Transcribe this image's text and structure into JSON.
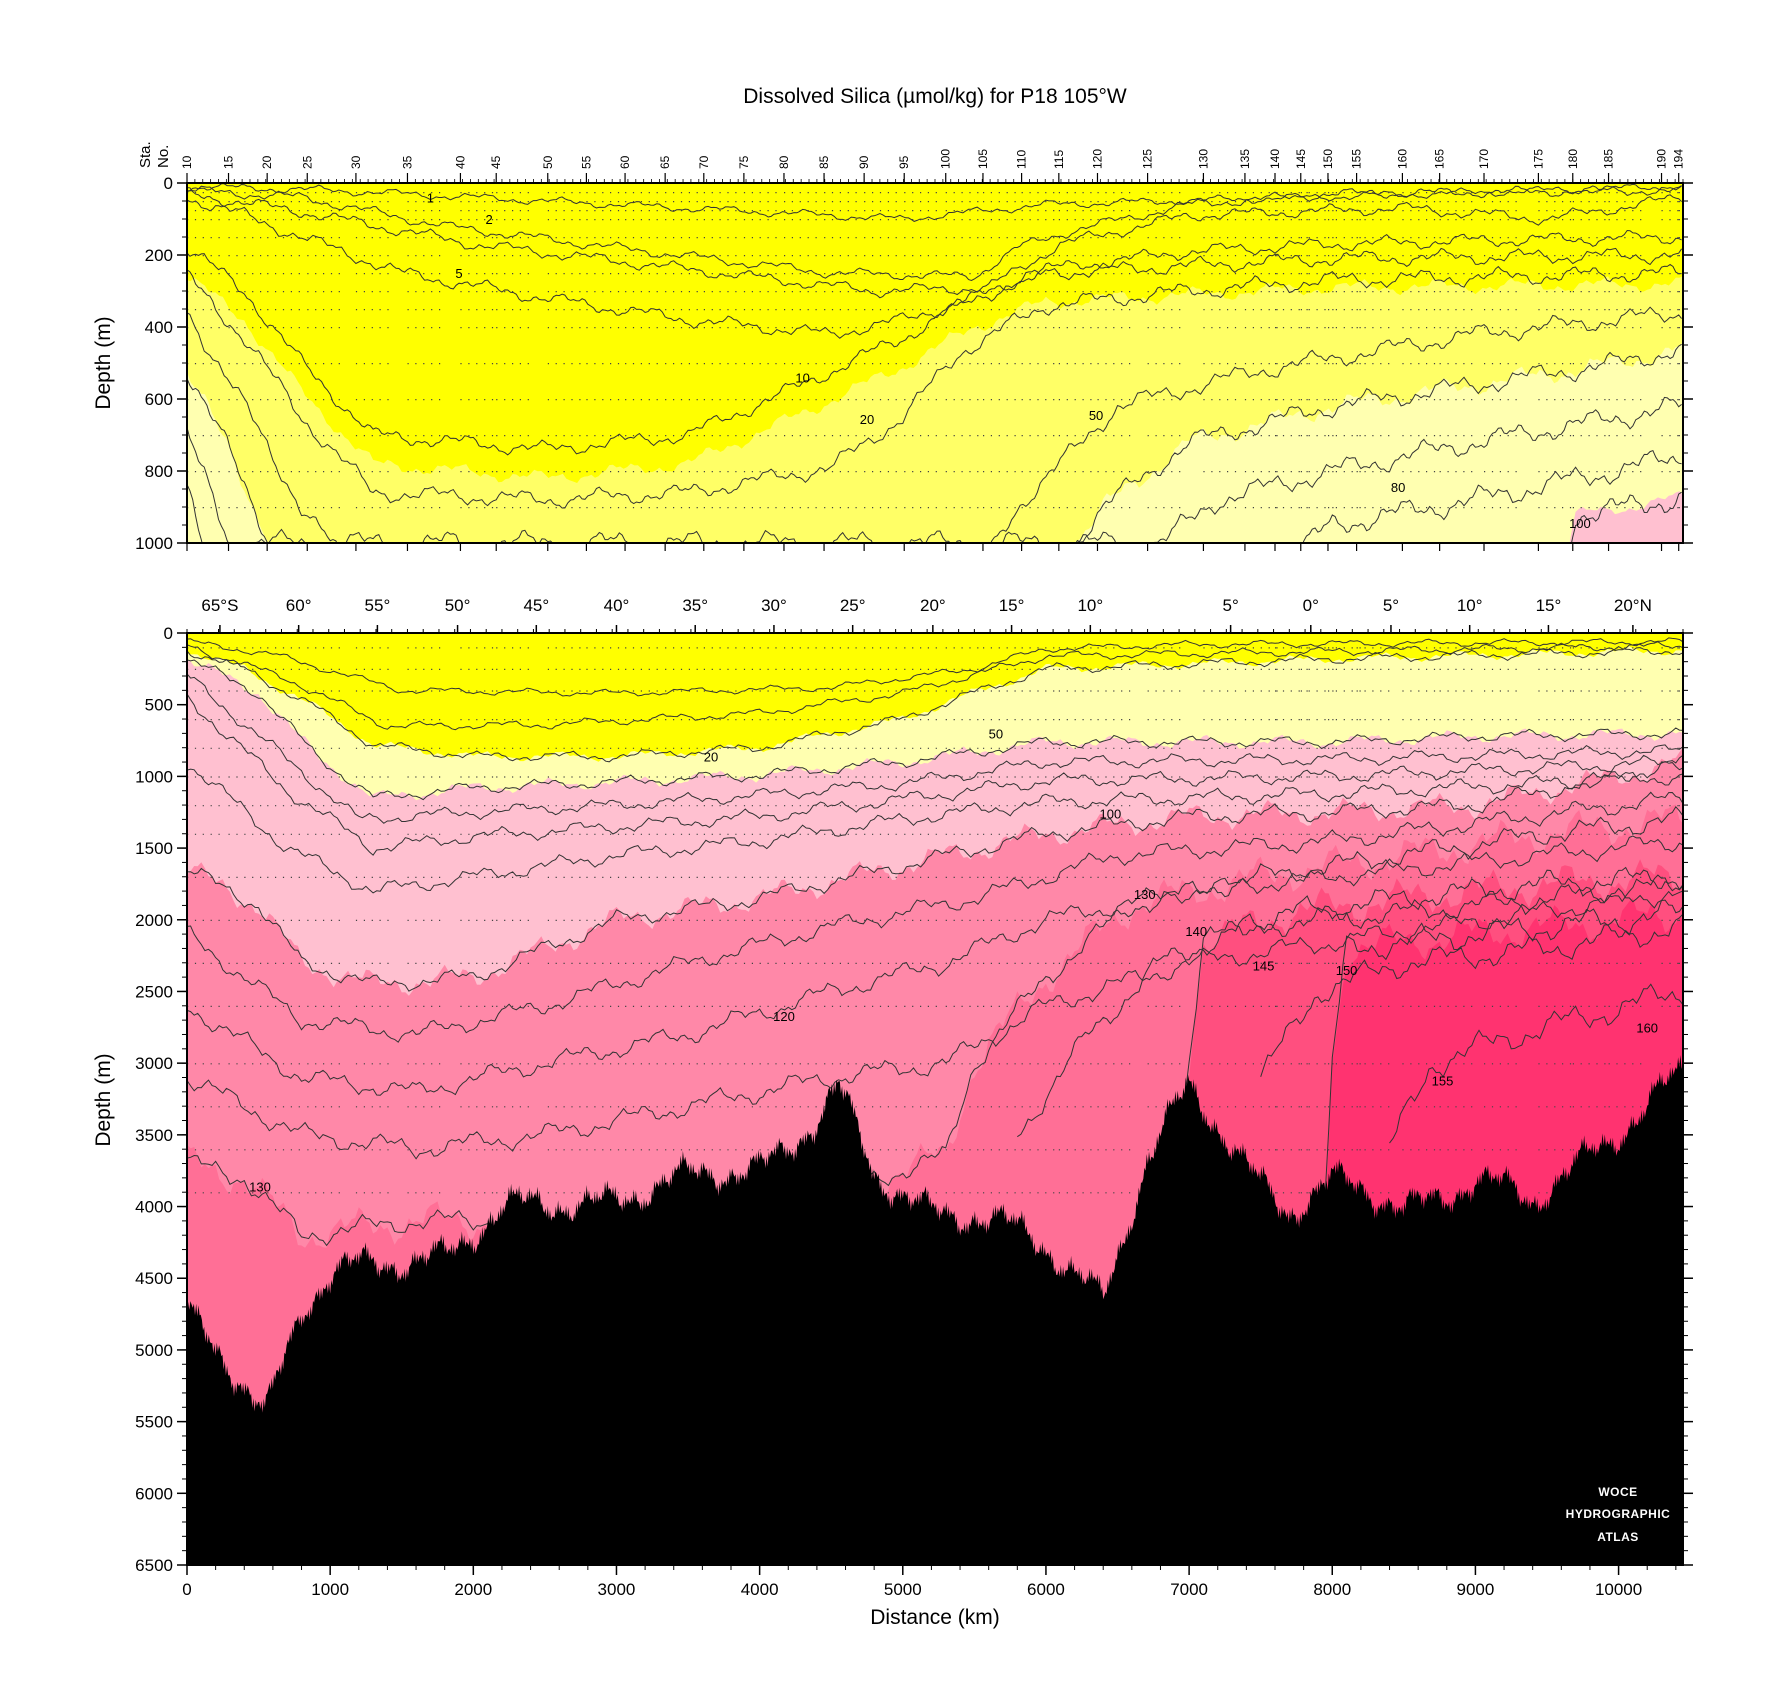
{
  "chart_data": {
    "type": "contour-section",
    "title": "Dissolved Silica (µmol/kg) for P18 105°W",
    "xlabel": "Distance (km)",
    "ylabel": "Depth (m)",
    "station_axis_label": [
      "Sta.",
      "No."
    ],
    "x_range": [
      0,
      10450
    ],
    "x_ticks": [
      0,
      1000,
      2000,
      3000,
      4000,
      5000,
      6000,
      7000,
      8000,
      9000,
      10000
    ],
    "stations": [
      {
        "sta": "10",
        "km": 0
      },
      {
        "sta": "15",
        "km": 290
      },
      {
        "sta": "20",
        "km": 560
      },
      {
        "sta": "25",
        "km": 840
      },
      {
        "sta": "30",
        "km": 1180
      },
      {
        "sta": "35",
        "km": 1540
      },
      {
        "sta": "40",
        "km": 1910
      },
      {
        "sta": "45",
        "km": 2160
      },
      {
        "sta": "50",
        "km": 2520
      },
      {
        "sta": "55",
        "km": 2790
      },
      {
        "sta": "60",
        "km": 3060
      },
      {
        "sta": "65",
        "km": 3340
      },
      {
        "sta": "70",
        "km": 3610
      },
      {
        "sta": "75",
        "km": 3890
      },
      {
        "sta": "80",
        "km": 4170
      },
      {
        "sta": "85",
        "km": 4450
      },
      {
        "sta": "90",
        "km": 4730
      },
      {
        "sta": "95",
        "km": 5010
      },
      {
        "sta": "100",
        "km": 5300
      },
      {
        "sta": "105",
        "km": 5560
      },
      {
        "sta": "110",
        "km": 5830
      },
      {
        "sta": "115",
        "km": 6090
      },
      {
        "sta": "120",
        "km": 6360
      },
      {
        "sta": "125",
        "km": 6710
      },
      {
        "sta": "130",
        "km": 7100
      },
      {
        "sta": "135",
        "km": 7390
      },
      {
        "sta": "140",
        "km": 7600
      },
      {
        "sta": "145",
        "km": 7780
      },
      {
        "sta": "150",
        "km": 7970
      },
      {
        "sta": "155",
        "km": 8170
      },
      {
        "sta": "160",
        "km": 8490
      },
      {
        "sta": "165",
        "km": 8750
      },
      {
        "sta": "170",
        "km": 9060
      },
      {
        "sta": "175",
        "km": 9440
      },
      {
        "sta": "180",
        "km": 9680
      },
      {
        "sta": "185",
        "km": 9930
      },
      {
        "sta": "190",
        "km": 10300
      },
      {
        "sta": "194",
        "km": 10420
      }
    ],
    "latitudes": [
      {
        "label": "65°S",
        "km": 230
      },
      {
        "label": "60°",
        "km": 780
      },
      {
        "label": "55°",
        "km": 1330
      },
      {
        "label": "50°",
        "km": 1890
      },
      {
        "label": "45°",
        "km": 2440
      },
      {
        "label": "40°",
        "km": 3000
      },
      {
        "label": "35°",
        "km": 3550
      },
      {
        "label": "30°",
        "km": 4100
      },
      {
        "label": "25°",
        "km": 4650
      },
      {
        "label": "20°",
        "km": 5210
      },
      {
        "label": "15°",
        "km": 5760
      },
      {
        "label": "10°",
        "km": 6310
      },
      {
        "label": "5°",
        "km": 7290
      },
      {
        "label": "0°",
        "km": 7850
      },
      {
        "label": "5°",
        "km": 8410
      },
      {
        "label": "10°",
        "km": 8960
      },
      {
        "label": "15°",
        "km": 9510
      },
      {
        "label": "20°N",
        "km": 10100
      }
    ],
    "upper_panel": {
      "ylim": [
        0,
        1000
      ],
      "y_ticks": [
        0,
        200,
        400,
        600,
        800,
        1000
      ],
      "contour_levels": [
        1,
        2,
        5,
        10,
        20,
        50,
        80,
        100
      ],
      "contour_labels": [
        {
          "text": "1",
          "km": 1700,
          "depth": 40
        },
        {
          "text": "2",
          "km": 2110,
          "depth": 100
        },
        {
          "text": "5",
          "km": 1900,
          "depth": 250
        },
        {
          "text": "10",
          "km": 4300,
          "depth": 540
        },
        {
          "text": "20",
          "km": 4750,
          "depth": 655
        },
        {
          "text": "50",
          "km": 6350,
          "depth": 645
        },
        {
          "text": "80",
          "km": 8460,
          "depth": 845
        },
        {
          "text": "100",
          "km": 9730,
          "depth": 945
        }
      ]
    },
    "lower_panel": {
      "ylim": [
        0,
        6500
      ],
      "y_ticks": [
        0,
        500,
        1000,
        1500,
        2000,
        2500,
        3000,
        3500,
        4000,
        4500,
        5000,
        5500,
        6000,
        6500
      ],
      "contour_levels": [
        20,
        50,
        100,
        120,
        130,
        140,
        145,
        150,
        155,
        160
      ],
      "contour_labels": [
        {
          "text": "20",
          "km": 3660,
          "depth": 860
        },
        {
          "text": "50",
          "km": 5650,
          "depth": 700
        },
        {
          "text": "100",
          "km": 6450,
          "depth": 1260
        },
        {
          "text": "130",
          "km": 6690,
          "depth": 1820
        },
        {
          "text": "140",
          "km": 7050,
          "depth": 2080
        },
        {
          "text": "145",
          "km": 7520,
          "depth": 2320
        },
        {
          "text": "150",
          "km": 8100,
          "depth": 2350
        },
        {
          "text": "120",
          "km": 4170,
          "depth": 2670
        },
        {
          "text": "155",
          "km": 8770,
          "depth": 3120
        },
        {
          "text": "160",
          "km": 10200,
          "depth": 2750
        },
        {
          "text": "130",
          "km": 510,
          "depth": 3860
        }
      ]
    },
    "color_bands": [
      {
        "range": "< 20",
        "color": "#ffff00"
      },
      {
        "range": "20–50",
        "color": "#ffff66"
      },
      {
        "range": "50–100",
        "color": "#ffffb0"
      },
      {
        "range": "100–130",
        "color": "#ffc0d0"
      },
      {
        "range": "130–140",
        "color": "#ff88a8"
      },
      {
        "range": "140–150",
        "color": "#ff6f96"
      },
      {
        "range": "150–160",
        "color": "#ff4f7f"
      },
      {
        "range": "> 160",
        "color": "#ff3370"
      }
    ],
    "seafloor_color": "#000000",
    "logo": [
      "WOCE",
      "HYDROGRAPHIC",
      "ATLAS"
    ]
  }
}
